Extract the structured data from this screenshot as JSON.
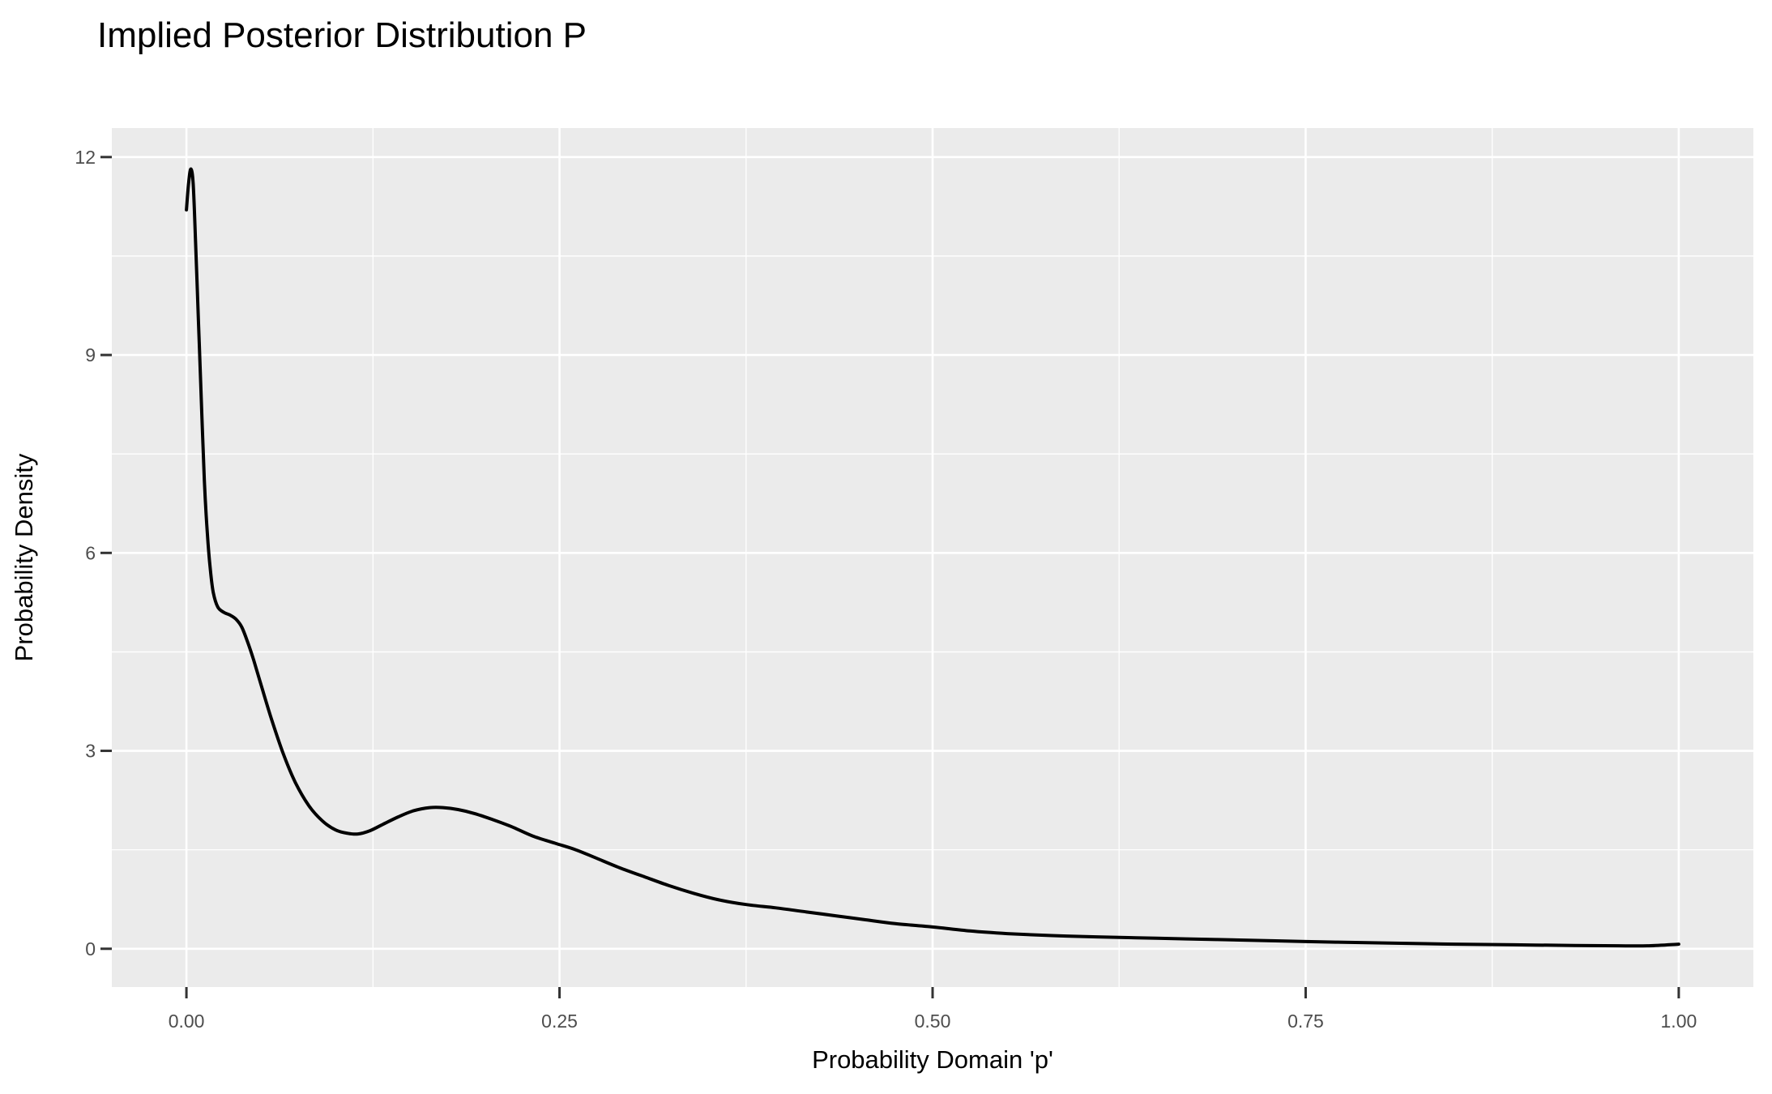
{
  "chart_data": {
    "type": "line",
    "subtype": "density-curve",
    "title": "Implied Posterior Distribution P",
    "xlabel": "Probability Domain 'p'",
    "ylabel": "Probability Density",
    "legend": "none",
    "grid": "ggplot2-style: grey panel, white major and minor gridlines",
    "xlim": [
      -0.05,
      1.05
    ],
    "ylim": [
      -0.58,
      12.44
    ],
    "x_major_ticks": [
      0.0,
      0.25,
      0.5,
      0.75,
      1.0
    ],
    "x_tick_labels": [
      "0.00",
      "0.25",
      "0.50",
      "0.75",
      "1.00"
    ],
    "x_minor_ticks": [
      0.125,
      0.375,
      0.625,
      0.875
    ],
    "y_major_ticks": [
      0,
      3,
      6,
      9,
      12
    ],
    "y_tick_labels": [
      "0",
      "3",
      "6",
      "9",
      "12"
    ],
    "y_minor_ticks": [
      1.5,
      4.5,
      7.5,
      10.5
    ],
    "series": [
      {
        "name": "posterior-density",
        "color": "#000000",
        "points": [
          [
            0.0,
            11.2
          ],
          [
            0.0015,
            11.62
          ],
          [
            0.003,
            11.82
          ],
          [
            0.0045,
            11.6
          ],
          [
            0.006,
            10.8
          ],
          [
            0.008,
            9.55
          ],
          [
            0.01,
            8.3
          ],
          [
            0.012,
            7.1
          ],
          [
            0.014,
            6.3
          ],
          [
            0.016,
            5.75
          ],
          [
            0.018,
            5.4
          ],
          [
            0.021,
            5.18
          ],
          [
            0.025,
            5.1
          ],
          [
            0.029,
            5.06
          ],
          [
            0.033,
            5.0
          ],
          [
            0.037,
            4.88
          ],
          [
            0.041,
            4.65
          ],
          [
            0.045,
            4.38
          ],
          [
            0.05,
            4.0
          ],
          [
            0.057,
            3.48
          ],
          [
            0.065,
            2.95
          ],
          [
            0.073,
            2.52
          ],
          [
            0.082,
            2.17
          ],
          [
            0.091,
            1.94
          ],
          [
            0.1,
            1.8
          ],
          [
            0.108,
            1.75
          ],
          [
            0.115,
            1.74
          ],
          [
            0.123,
            1.79
          ],
          [
            0.132,
            1.89
          ],
          [
            0.142,
            2.0
          ],
          [
            0.152,
            2.09
          ],
          [
            0.163,
            2.14
          ],
          [
            0.172,
            2.14
          ],
          [
            0.182,
            2.11
          ],
          [
            0.193,
            2.05
          ],
          [
            0.205,
            1.96
          ],
          [
            0.218,
            1.85
          ],
          [
            0.232,
            1.71
          ],
          [
            0.247,
            1.6
          ],
          [
            0.261,
            1.5
          ],
          [
            0.275,
            1.37
          ],
          [
            0.29,
            1.23
          ],
          [
            0.307,
            1.09
          ],
          [
            0.323,
            0.96
          ],
          [
            0.34,
            0.84
          ],
          [
            0.357,
            0.74
          ],
          [
            0.375,
            0.67
          ],
          [
            0.395,
            0.62
          ],
          [
            0.415,
            0.56
          ],
          [
            0.435,
            0.5
          ],
          [
            0.455,
            0.44
          ],
          [
            0.475,
            0.38
          ],
          [
            0.5,
            0.33
          ],
          [
            0.525,
            0.27
          ],
          [
            0.55,
            0.23
          ],
          [
            0.58,
            0.2
          ],
          [
            0.61,
            0.18
          ],
          [
            0.65,
            0.16
          ],
          [
            0.69,
            0.14
          ],
          [
            0.73,
            0.12
          ],
          [
            0.77,
            0.1
          ],
          [
            0.81,
            0.085
          ],
          [
            0.85,
            0.07
          ],
          [
            0.89,
            0.06
          ],
          [
            0.93,
            0.05
          ],
          [
            0.96,
            0.045
          ],
          [
            0.98,
            0.045
          ],
          [
            1.0,
            0.07
          ]
        ]
      }
    ],
    "colors": {
      "panel_background": "#EBEBEB",
      "gridline": "#FFFFFF",
      "curve": "#000000",
      "tick_label": "#4D4D4D",
      "tick_mark": "#333333",
      "axis_title": "#000000",
      "plot_title": "#000000",
      "page_background": "#FFFFFF"
    }
  }
}
